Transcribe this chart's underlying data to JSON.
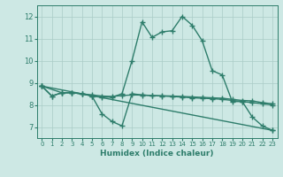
{
  "line1_x": [
    0,
    1,
    2,
    3,
    4,
    5,
    6,
    7,
    8,
    9,
    10,
    11,
    12,
    13,
    14,
    15,
    16,
    17,
    18,
    19,
    20,
    21,
    22,
    23
  ],
  "line1_y": [
    8.85,
    8.4,
    8.55,
    8.55,
    8.5,
    8.4,
    8.35,
    8.35,
    8.5,
    10.0,
    11.75,
    11.05,
    11.3,
    11.35,
    12.0,
    11.6,
    10.9,
    9.55,
    9.35,
    8.15,
    8.15,
    7.45,
    7.05,
    6.85
  ],
  "line2_x": [
    0,
    2,
    3,
    4,
    5,
    6,
    7,
    8,
    9,
    10,
    11,
    12,
    13,
    14,
    15,
    16,
    17,
    18,
    19,
    20,
    21,
    22,
    23
  ],
  "line2_y": [
    8.85,
    8.55,
    8.55,
    8.5,
    8.45,
    8.4,
    8.38,
    8.42,
    8.45,
    8.44,
    8.42,
    8.41,
    8.4,
    8.38,
    8.36,
    8.34,
    8.32,
    8.3,
    8.25,
    8.2,
    8.18,
    8.1,
    8.05
  ],
  "line3_x": [
    0,
    1,
    2,
    3,
    4,
    5,
    6,
    7,
    8,
    9,
    10,
    11,
    12,
    13,
    14,
    15,
    16,
    17,
    18,
    19,
    20,
    21,
    22,
    23
  ],
  "line3_y": [
    8.85,
    8.4,
    8.55,
    8.55,
    8.5,
    8.4,
    7.6,
    7.25,
    7.05,
    8.5,
    8.45,
    8.42,
    8.4,
    8.38,
    8.35,
    8.32,
    8.3,
    8.28,
    8.25,
    8.2,
    8.15,
    8.1,
    8.05,
    8.0
  ],
  "line4_x": [
    0,
    23
  ],
  "line4_y": [
    8.85,
    6.85
  ],
  "color": "#2e7d6b",
  "bg_color": "#cde8e4",
  "grid_color": "#aaccc7",
  "xlabel": "Humidex (Indice chaleur)",
  "ylim": [
    6.5,
    12.5
  ],
  "xlim": [
    -0.5,
    23.5
  ],
  "yticks": [
    7,
    8,
    9,
    10,
    11,
    12
  ],
  "xticks": [
    0,
    1,
    2,
    3,
    4,
    5,
    6,
    7,
    8,
    9,
    10,
    11,
    12,
    13,
    14,
    15,
    16,
    17,
    18,
    19,
    20,
    21,
    22,
    23
  ],
  "markersize": 4,
  "linewidth": 1.0
}
